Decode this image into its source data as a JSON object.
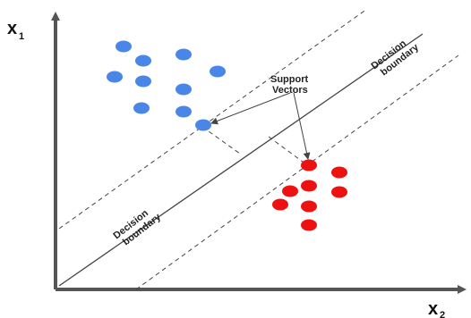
{
  "axes": {
    "y_label": "x",
    "y_subscript": "1",
    "x_label": "x",
    "x_subscript": "2"
  },
  "labels": {
    "support_vectors_line1": "Support",
    "support_vectors_line2": "Vectors",
    "boundary_top_line1": "Decision",
    "boundary_top_line2": "boundary",
    "boundary_bottom_line1": "Decision",
    "boundary_bottom_line2": "boundary"
  },
  "colors": {
    "class_a": "#4a86e8",
    "class_b": "#ee1111",
    "axis": "#555555",
    "line": "#444444"
  },
  "classes": {
    "class_a_points": 11,
    "class_b_points": 9,
    "support_vectors": 2
  }
}
